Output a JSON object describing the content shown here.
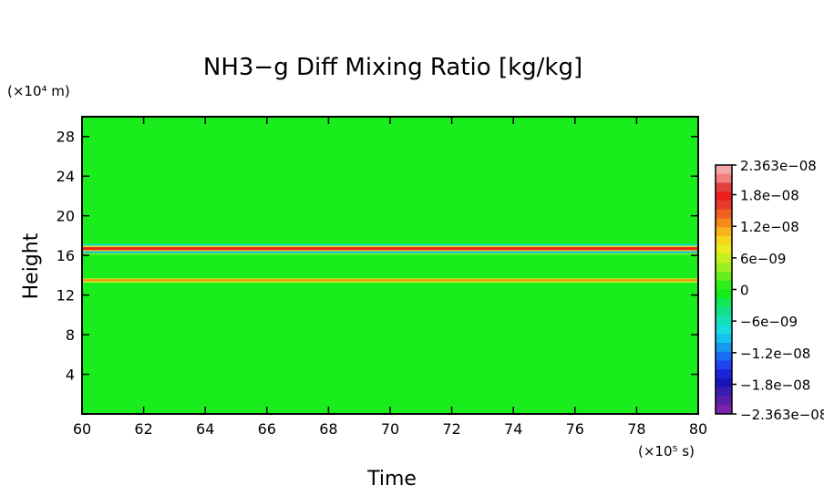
{
  "chart_data": {
    "type": "heatmap",
    "title": "NH3−g Diff Mixing Ratio [kg/kg]",
    "xlabel": "Time",
    "ylabel": "Height",
    "x_unit": "(×10⁵ s)",
    "y_unit": "(×10⁴ m)",
    "xlim": [
      60,
      80
    ],
    "ylim": [
      0,
      30
    ],
    "x_ticks": [
      60,
      62,
      64,
      66,
      68,
      70,
      72,
      74,
      76,
      78,
      80
    ],
    "y_ticks": [
      4,
      8,
      12,
      16,
      20,
      24,
      28
    ],
    "background_value": 0,
    "bands": [
      {
        "y": 16.6,
        "peak": 2.2e-08,
        "note": "strong positive layer, thin negative flanks"
      },
      {
        "y": 13.5,
        "peak": 8e-09,
        "note": "weaker positive layer"
      }
    ],
    "colorbar": {
      "min": -2.363e-08,
      "max": 2.363e-08,
      "tick_labels": [
        "2.363e−08",
        "1.8e−08",
        "1.2e−08",
        "6e−09",
        "0",
        "−6e−09",
        "−1.2e−08",
        "−1.8e−08",
        "−2.363e−08"
      ],
      "tick_values": [
        2.363e-08,
        1.8e-08,
        1.2e-08,
        6e-09,
        0,
        -6e-09,
        -1.2e-08,
        -1.8e-08,
        -2.363e-08
      ],
      "colors_top_to_bottom": [
        "#f4a8a8",
        "#f08080",
        "#e04040",
        "#ee1f1f",
        "#e73a2a",
        "#f06020",
        "#f48a1a",
        "#f9b11c",
        "#f5d71d",
        "#e8ed20",
        "#c4f020",
        "#9cf01f",
        "#66ef1c",
        "#2fef18",
        "#12ec1a",
        "#10e85a",
        "#12e08c",
        "#14e0b8",
        "#16dde0",
        "#14c2ef",
        "#1897ef",
        "#1a6cf0",
        "#2044f0",
        "#1a23d8",
        "#1a14b8",
        "#3a1cb0",
        "#5a1ea8",
        "#7a22a8"
      ]
    }
  }
}
